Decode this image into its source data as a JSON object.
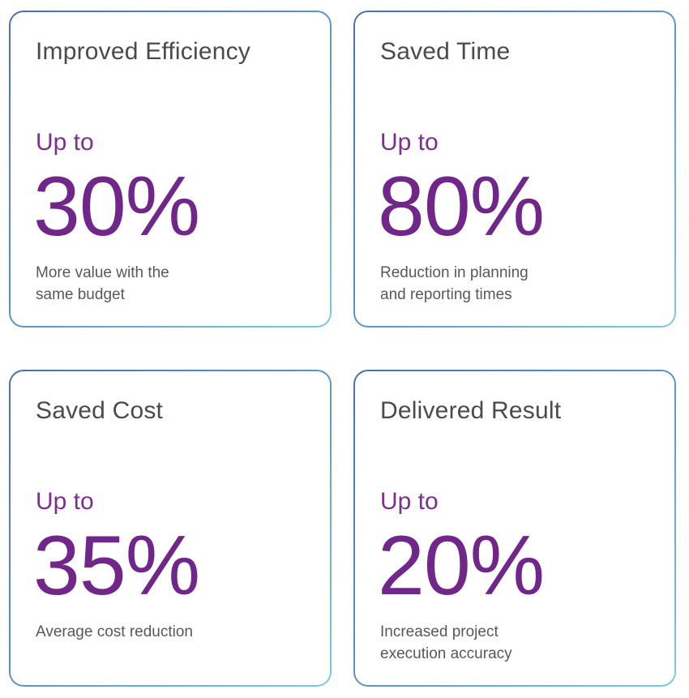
{
  "colors": {
    "title": "#4a4a4f",
    "accent": "#71278a",
    "description": "#58585c",
    "border_start": "#4c6fb2",
    "border_end": "#7ccbe0"
  },
  "cards": [
    {
      "title": "Improved Efficiency",
      "prefix": "Up to",
      "value": "30%",
      "description_lines": [
        "More value with the",
        "same budget"
      ]
    },
    {
      "title": "Saved Time",
      "prefix": "Up to",
      "value": "80%",
      "description_lines": [
        "Reduction in planning",
        "and reporting times"
      ]
    },
    {
      "title": "Saved Cost",
      "prefix": "Up to",
      "value": "35%",
      "description_lines": [
        "Average cost reduction"
      ]
    },
    {
      "title": "Delivered Result",
      "prefix": "Up to",
      "value": "20%",
      "description_lines": [
        "Increased project",
        "execution accuracy"
      ]
    }
  ]
}
